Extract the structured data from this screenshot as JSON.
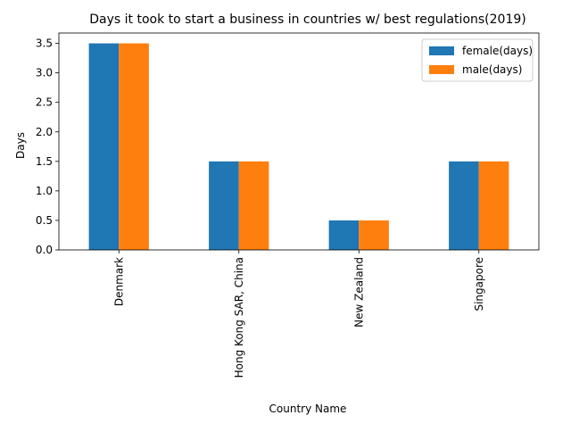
{
  "chart_data": {
    "type": "bar",
    "title": "Days it took to start a business in countries w/ best regulations(2019)",
    "xlabel": "Country Name",
    "ylabel": "Days",
    "categories": [
      "Denmark",
      "Hong Kong SAR, China",
      "New Zealand",
      "Singapore"
    ],
    "series": [
      {
        "name": "female(days)",
        "values": [
          3.5,
          1.5,
          0.5,
          1.5
        ],
        "color": "#1f77b4"
      },
      {
        "name": "male(days)",
        "values": [
          3.5,
          1.5,
          0.5,
          1.5
        ],
        "color": "#ff7f0e"
      }
    ],
    "ylim": [
      0,
      3.675
    ],
    "yticks": [
      "0.0",
      "0.5",
      "1.0",
      "1.5",
      "2.0",
      "2.5",
      "3.0",
      "3.5"
    ],
    "grid": false,
    "legend_position": "top-right"
  }
}
